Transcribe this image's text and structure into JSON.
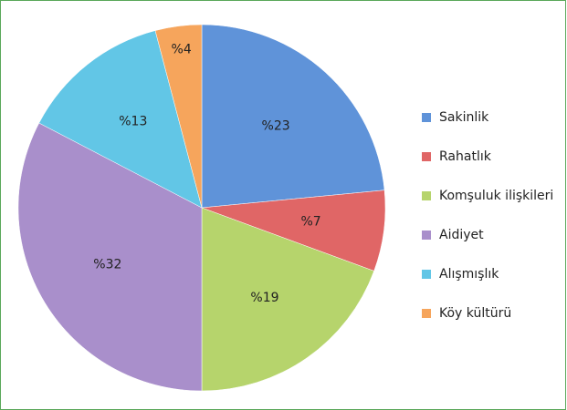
{
  "chart_data": {
    "type": "pie",
    "categories": [
      "Sakinlik",
      "Rahatlık",
      "Komşuluk ilişkileri",
      "Aidiyet",
      "Alışmışlık",
      "Köy kültürü"
    ],
    "values": [
      23,
      7,
      19,
      32,
      13,
      4
    ],
    "value_labels": [
      "%23",
      "%7",
      "%19",
      "%32",
      "%13",
      "%4"
    ],
    "colors": [
      "#5f93d9",
      "#e06666",
      "#b6d46c",
      "#a98fcb",
      "#62c6e6",
      "#f6a55c"
    ],
    "legend": "right"
  }
}
